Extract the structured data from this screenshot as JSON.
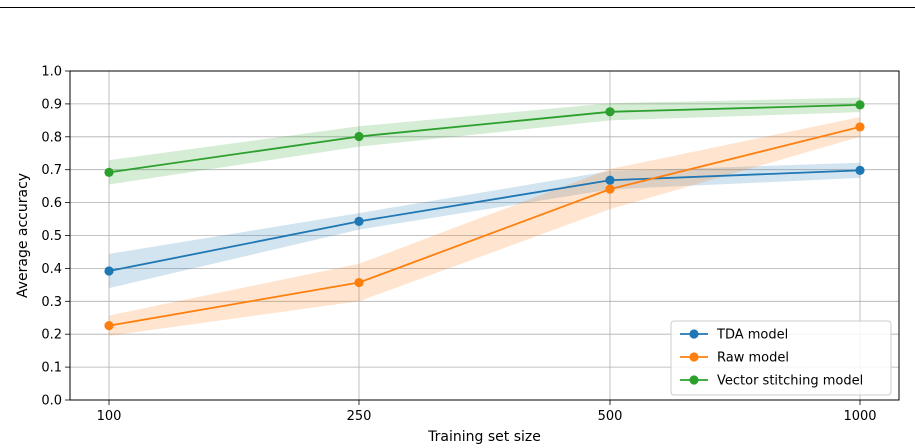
{
  "chart_data": {
    "type": "line",
    "xlabel": "Training set size",
    "ylabel": "Average accuracy",
    "categories": [
      "100",
      "250",
      "500",
      "1000"
    ],
    "ylim": [
      0.0,
      1.0
    ],
    "yticks": [
      "0.0",
      "0.1",
      "0.2",
      "0.3",
      "0.4",
      "0.5",
      "0.6",
      "0.7",
      "0.8",
      "0.9",
      "1.0"
    ],
    "grid": true,
    "legend_position": "bottom-right",
    "series": [
      {
        "name": "TDA model",
        "color": "#1f77b4",
        "values": [
          0.392,
          0.543,
          0.668,
          0.698
        ],
        "lower": [
          0.34,
          0.518,
          0.64,
          0.675
        ],
        "upper": [
          0.444,
          0.568,
          0.696,
          0.721
        ]
      },
      {
        "name": "Raw model",
        "color": "#ff7f0e",
        "values": [
          0.226,
          0.357,
          0.641,
          0.83
        ],
        "lower": [
          0.195,
          0.3,
          0.58,
          0.8
        ],
        "upper": [
          0.257,
          0.414,
          0.702,
          0.86
        ]
      },
      {
        "name": "Vector stitching model",
        "color": "#2ca02c",
        "values": [
          0.692,
          0.801,
          0.876,
          0.897
        ],
        "lower": [
          0.655,
          0.77,
          0.85,
          0.875
        ],
        "upper": [
          0.729,
          0.832,
          0.902,
          0.919
        ]
      }
    ]
  }
}
